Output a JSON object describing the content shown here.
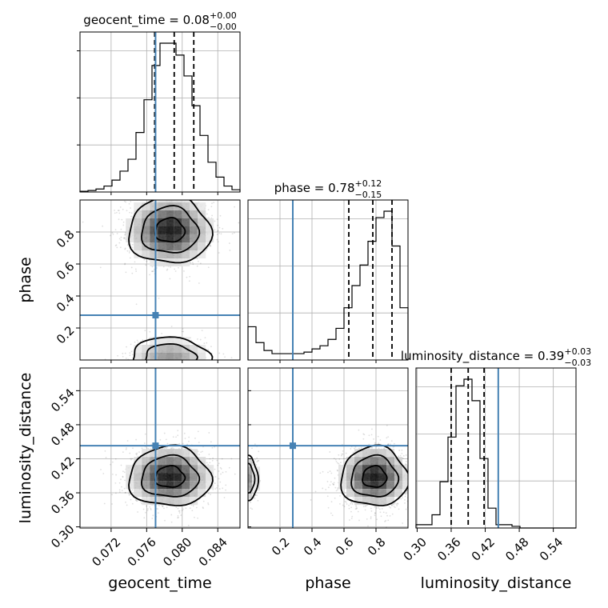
{
  "chart_data": {
    "type": "corner",
    "parameters": [
      {
        "name": "geocent_time",
        "axis_label": "geocent_time",
        "range": [
          0.0685,
          0.0865
        ],
        "ticks": [
          0.072,
          0.076,
          0.08,
          0.084
        ],
        "tick_labels": [
          "0.072",
          "0.076",
          "0.080",
          "0.084"
        ],
        "truth": 0.077,
        "quantiles": [
          0.0769,
          0.0791,
          0.0813
        ],
        "title": {
          "prefix": "geocent_time = 0.08",
          "upper": "+0.00",
          "lower": "−0.00"
        },
        "histogram": [
          0.005,
          0.01,
          0.02,
          0.04,
          0.08,
          0.14,
          0.22,
          0.4,
          0.62,
          0.85,
          1.0,
          1.0,
          0.92,
          0.78,
          0.58,
          0.38,
          0.2,
          0.1,
          0.04,
          0.015
        ]
      },
      {
        "name": "phase",
        "axis_label": "phase",
        "range": [
          0.0,
          1.0
        ],
        "ticks": [
          0.2,
          0.4,
          0.6,
          0.8
        ],
        "tick_labels": [
          "0.2",
          "0.4",
          "0.6",
          "0.8"
        ],
        "truth": 0.28,
        "quantiles": [
          0.63,
          0.78,
          0.9
        ],
        "title": {
          "prefix": "phase = 0.78",
          "upper": "+0.12",
          "lower": "−0.15"
        },
        "histogram": [
          0.21,
          0.11,
          0.06,
          0.04,
          0.04,
          0.04,
          0.04,
          0.05,
          0.07,
          0.09,
          0.13,
          0.2,
          0.33,
          0.47,
          0.6,
          0.75,
          0.9,
          0.94,
          0.72,
          0.33
        ]
      },
      {
        "name": "luminosity_distance",
        "axis_label": "luminosity_distance",
        "range": [
          0.298,
          0.58
        ],
        "ticks": [
          0.3,
          0.36,
          0.42,
          0.48,
          0.54
        ],
        "tick_labels": [
          "0.30",
          "0.36",
          "0.42",
          "0.48",
          "0.54"
        ],
        "truth": 0.443,
        "quantiles": [
          0.36,
          0.39,
          0.418
        ],
        "title": {
          "prefix": "luminosity_distance = 0.39",
          "upper": "+0.03",
          "lower": "−0.03"
        },
        "histogram": [
          0.02,
          0.02,
          0.08,
          0.28,
          0.55,
          0.86,
          0.9,
          0.77,
          0.42,
          0.12,
          0.02,
          0.02,
          0.01,
          0.0,
          0.0,
          0.0,
          0.0,
          0.0,
          0.0,
          0.0
        ]
      }
    ],
    "joint": [
      {
        "x": "geocent_time",
        "y": "phase",
        "modes": [
          {
            "cx": 0.0786,
            "cy": 0.81,
            "sx": 0.0022,
            "sy": 0.1
          },
          {
            "cx": 0.0786,
            "cy": 0.02,
            "sx": 0.0022,
            "sy": 0.06
          }
        ]
      },
      {
        "x": "geocent_time",
        "y": "luminosity_distance",
        "modes": [
          {
            "cx": 0.0786,
            "cy": 0.388,
            "sx": 0.0022,
            "sy": 0.025
          }
        ]
      },
      {
        "x": "phase",
        "y": "luminosity_distance",
        "modes": [
          {
            "cx": 0.79,
            "cy": 0.388,
            "sx": 0.1,
            "sy": 0.025
          },
          {
            "cx": 0.0,
            "cy": 0.385,
            "sx": 0.03,
            "sy": 0.02
          }
        ]
      }
    ],
    "colors": {
      "truth": "#4682b4",
      "hist": "#000000",
      "quantile": "#000000",
      "grid": "#b0b0b0",
      "density": "#000000"
    },
    "grid": true
  }
}
